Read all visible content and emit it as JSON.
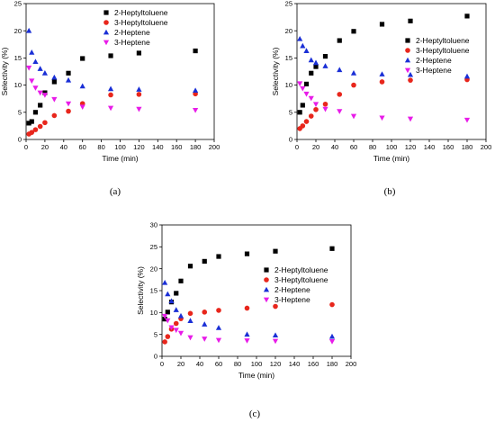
{
  "chart_data": [
    {
      "type": "scatter",
      "caption": "(a)",
      "xlabel": "Time (min)",
      "ylabel": "Selectivity (%)",
      "xlim": [
        0,
        200
      ],
      "ylim": [
        0,
        25
      ],
      "xticks": [
        0,
        20,
        40,
        60,
        80,
        100,
        120,
        140,
        160,
        180,
        200
      ],
      "yticks": [
        0,
        5,
        10,
        15,
        20,
        25
      ],
      "legend_position": "top-right",
      "series": [
        {
          "name": "2-Heptyltoluene",
          "marker": "square",
          "color": "#000000",
          "x": [
            3,
            6,
            10,
            15,
            20,
            30,
            45,
            60,
            90,
            120,
            180
          ],
          "y": [
            3.0,
            3.3,
            5.0,
            6.3,
            8.6,
            10.6,
            12.2,
            14.9,
            15.4,
            15.9,
            16.3
          ]
        },
        {
          "name": "3-Heptyltoluene",
          "marker": "circle",
          "color": "#e8261c",
          "x": [
            3,
            6,
            10,
            15,
            20,
            30,
            45,
            60,
            90,
            120,
            180
          ],
          "y": [
            1.0,
            1.3,
            1.8,
            2.4,
            3.1,
            4.4,
            5.2,
            6.6,
            8.2,
            8.3,
            8.4
          ]
        },
        {
          "name": "2-Heptene",
          "marker": "triangle-up",
          "color": "#1a2fd6",
          "x": [
            3,
            6,
            10,
            15,
            20,
            30,
            45,
            60,
            90,
            120,
            180
          ],
          "y": [
            20.0,
            16.0,
            14.3,
            13.0,
            12.2,
            11.4,
            10.9,
            9.8,
            9.3,
            9.2,
            9.0
          ]
        },
        {
          "name": "3-Heptene",
          "marker": "triangle-down",
          "color": "#e81ce8",
          "x": [
            3,
            6,
            10,
            15,
            20,
            30,
            45,
            60,
            90,
            120,
            180
          ],
          "y": [
            13.2,
            10.8,
            9.5,
            8.6,
            8.2,
            7.4,
            6.6,
            6.0,
            5.8,
            5.6,
            5.4
          ]
        }
      ]
    },
    {
      "type": "scatter",
      "caption": "(b)",
      "xlabel": "Time (min)",
      "ylabel": "Selectivity (%)",
      "xlim": [
        0,
        200
      ],
      "ylim": [
        0,
        25
      ],
      "xticks": [
        0,
        20,
        40,
        60,
        80,
        100,
        120,
        140,
        160,
        180,
        200
      ],
      "yticks": [
        0,
        5,
        10,
        15,
        20,
        25
      ],
      "legend_position": "top-right",
      "series": [
        {
          "name": "2-Heptyltoluene",
          "marker": "square",
          "color": "#000000",
          "x": [
            3,
            6,
            10,
            15,
            20,
            30,
            45,
            60,
            90,
            120,
            180
          ],
          "y": [
            5.0,
            6.3,
            10.2,
            12.2,
            13.4,
            15.3,
            18.2,
            19.9,
            21.2,
            21.8,
            22.7
          ]
        },
        {
          "name": "3-Heptyltoluene",
          "marker": "circle",
          "color": "#e8261c",
          "x": [
            3,
            6,
            10,
            15,
            20,
            30,
            45,
            60,
            90,
            120,
            180
          ],
          "y": [
            2.0,
            2.5,
            3.3,
            4.3,
            5.5,
            6.5,
            8.3,
            10.0,
            10.6,
            10.9,
            11.0
          ]
        },
        {
          "name": "2-Heptene",
          "marker": "triangle-up",
          "color": "#1a2fd6",
          "x": [
            3,
            6,
            10,
            15,
            20,
            30,
            45,
            60,
            90,
            120,
            180
          ],
          "y": [
            18.5,
            17.2,
            16.3,
            14.6,
            14.1,
            13.5,
            12.8,
            12.2,
            12.0,
            11.9,
            11.6
          ]
        },
        {
          "name": "3-Heptene",
          "marker": "triangle-down",
          "color": "#e81ce8",
          "x": [
            3,
            6,
            10,
            15,
            20,
            30,
            45,
            60,
            90,
            120,
            180
          ],
          "y": [
            10.3,
            9.4,
            8.4,
            7.6,
            6.5,
            5.6,
            5.2,
            4.3,
            4.0,
            3.8,
            3.6
          ]
        }
      ]
    },
    {
      "type": "scatter",
      "caption": "(c)",
      "xlabel": "Time (min)",
      "ylabel": "Selectivity (%)",
      "xlim": [
        0,
        200
      ],
      "ylim": [
        0,
        30
      ],
      "xticks": [
        0,
        20,
        40,
        60,
        80,
        100,
        120,
        140,
        160,
        180,
        200
      ],
      "yticks": [
        0,
        5,
        10,
        15,
        20,
        25,
        30
      ],
      "legend_position": "right",
      "series": [
        {
          "name": "2-Heptyltoluene",
          "marker": "square",
          "color": "#000000",
          "x": [
            3,
            6,
            10,
            15,
            20,
            30,
            45,
            60,
            90,
            120,
            180
          ],
          "y": [
            8.5,
            10.1,
            12.4,
            14.4,
            17.2,
            20.6,
            21.7,
            22.8,
            23.4,
            24.0,
            24.6
          ]
        },
        {
          "name": "3-Heptyltoluene",
          "marker": "circle",
          "color": "#e8261c",
          "x": [
            3,
            6,
            10,
            15,
            20,
            30,
            45,
            60,
            90,
            120,
            180
          ],
          "y": [
            3.3,
            4.5,
            6.2,
            7.5,
            8.6,
            9.8,
            10.1,
            10.5,
            11.0,
            11.4,
            11.8
          ]
        },
        {
          "name": "2-Heptene",
          "marker": "triangle-up",
          "color": "#1a2fd6",
          "x": [
            3,
            6,
            10,
            15,
            20,
            30,
            45,
            60,
            90,
            120,
            180
          ],
          "y": [
            16.8,
            14.2,
            12.6,
            10.6,
            9.2,
            8.1,
            7.3,
            6.5,
            5.0,
            4.8,
            4.5
          ]
        },
        {
          "name": "3-Heptene",
          "marker": "triangle-down",
          "color": "#e81ce8",
          "x": [
            3,
            6,
            10,
            15,
            20,
            30,
            45,
            60,
            90,
            120,
            180
          ],
          "y": [
            9.2,
            8.2,
            6.6,
            6.0,
            5.3,
            4.3,
            4.0,
            3.7,
            3.6,
            3.5,
            3.4
          ]
        }
      ]
    }
  ]
}
